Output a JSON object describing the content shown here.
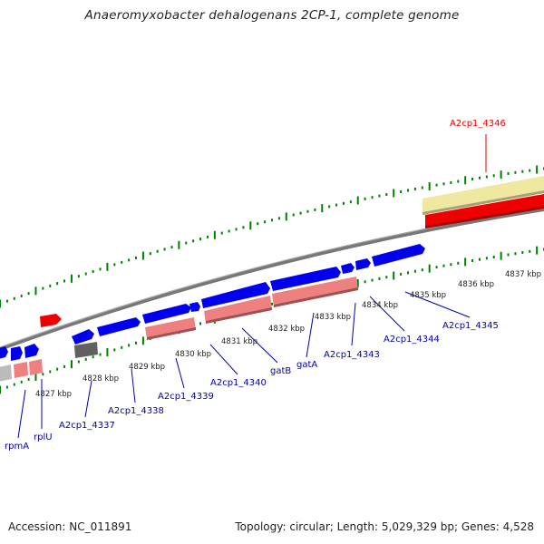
{
  "title": "Anaeromyxobacter dehalogenans 2CP-1, complete genome",
  "footer": {
    "accession": "Accession: NC_011891",
    "topology": "Topology: circular; Length: 5,029,329 bp; Genes: 4,528"
  },
  "colors": {
    "gene_forward": "#0000ee",
    "gene_label": "#0000aa",
    "highlight": "#ee0000",
    "cds_pink": "#ee8080",
    "cds_yellow": "#eee8a0",
    "rna_gray": "#606060",
    "tick_green": "#008000",
    "backbone_gray": "#777777"
  },
  "kbp_labels": [
    "4827 kbp",
    "4828 kbp",
    "4829 kbp",
    "4830 kbp",
    "4831 kbp",
    "4832 kbp",
    "4833 kbp",
    "4834 kbp",
    "4835 kbp",
    "4836 kbp",
    "4837 kbp"
  ],
  "gene_labels": [
    {
      "text": "rpmA",
      "kind": "normal"
    },
    {
      "text": "rplU",
      "kind": "normal"
    },
    {
      "text": "A2cp1_4337",
      "kind": "normal"
    },
    {
      "text": "A2cp1_4338",
      "kind": "normal"
    },
    {
      "text": "A2cp1_4339",
      "kind": "normal"
    },
    {
      "text": "A2cp1_4340",
      "kind": "normal"
    },
    {
      "text": "gatB",
      "kind": "normal"
    },
    {
      "text": "gatA",
      "kind": "normal"
    },
    {
      "text": "A2cp1_4343",
      "kind": "normal"
    },
    {
      "text": "A2cp1_4344",
      "kind": "normal"
    },
    {
      "text": "A2cp1_4345",
      "kind": "normal"
    },
    {
      "text": "A2cp1_4346",
      "kind": "highlight"
    }
  ]
}
